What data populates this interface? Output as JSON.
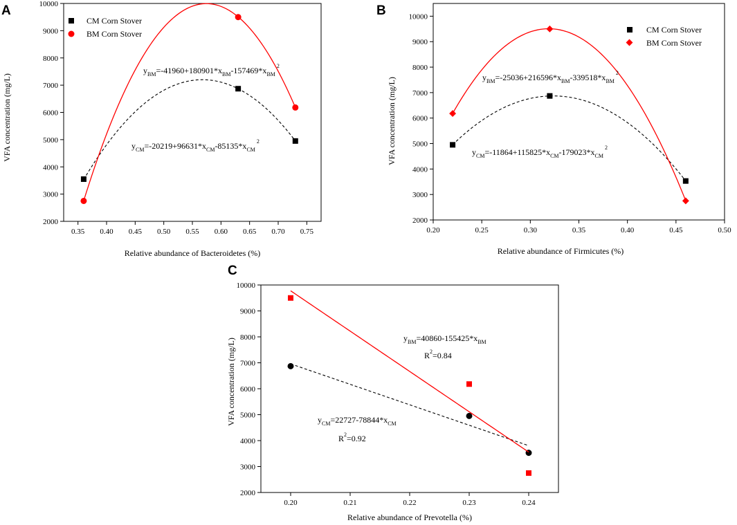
{
  "figure": {
    "panels": [
      "A",
      "B",
      "C"
    ],
    "colors": {
      "cm": "#000000",
      "bm": "#ff0000",
      "axis": "#000000",
      "background": "#ffffff"
    }
  },
  "chart_data": [
    {
      "id": "A",
      "type": "scatter",
      "title": "",
      "xlabel": "Relative abundance of Bacteroidetes (%)",
      "ylabel": "VFA concentration (mg/L)",
      "xlim": [
        0.325,
        0.775
      ],
      "ylim": [
        2000,
        10000
      ],
      "xticks": [
        0.35,
        0.4,
        0.45,
        0.5,
        0.55,
        0.6,
        0.65,
        0.7,
        0.75
      ],
      "xtick_labels": [
        "0.35",
        "0.40",
        "0.45",
        "0.50",
        "0.55",
        "0.60",
        "0.65",
        "0.70",
        "0.75"
      ],
      "yticks": [
        2000,
        3000,
        4000,
        5000,
        6000,
        7000,
        8000,
        9000,
        10000
      ],
      "legend_position": "top-left",
      "series": [
        {
          "name": "CM Corn Stover",
          "color": "#000000",
          "marker": "square",
          "x": [
            0.36,
            0.63,
            0.73
          ],
          "y": [
            3550,
            6870,
            4950
          ],
          "fit": {
            "style": "dashed",
            "color": "#000000",
            "coeffs": [
              -20219,
              96631,
              -85135
            ],
            "x_range": [
              0.36,
              0.73
            ]
          },
          "equation": {
            "y_sub": "CM",
            "x_sub": "CM",
            "text": "=-20219+96631*x",
            "text2": "-85135*x",
            "sup": "2"
          }
        },
        {
          "name": "BM Corn Stover",
          "color": "#ff0000",
          "marker": "circle",
          "x": [
            0.36,
            0.63,
            0.73
          ],
          "y": [
            2750,
            9500,
            6180
          ],
          "fit": {
            "style": "solid",
            "color": "#ff0000",
            "coeffs": [
              -41960,
              180901,
              -157469
            ],
            "x_range": [
              0.36,
              0.73
            ]
          },
          "equation": {
            "y_sub": "BM",
            "x_sub": "BM",
            "text": "=-41960+180901*x",
            "text2": "-157469*x",
            "sup": "2"
          }
        }
      ]
    },
    {
      "id": "B",
      "type": "scatter",
      "title": "",
      "xlabel": "Relative abundance of Firmicutes (%)",
      "ylabel": "VFA concentration (mg/L)",
      "xlim": [
        0.2,
        0.5
      ],
      "ylim": [
        2000,
        10500
      ],
      "xticks": [
        0.2,
        0.25,
        0.3,
        0.35,
        0.4,
        0.45,
        0.5
      ],
      "xtick_labels": [
        "0.20",
        "0.25",
        "0.30",
        "0.35",
        "0.40",
        "0.45",
        "0.50"
      ],
      "yticks": [
        2000,
        3000,
        4000,
        5000,
        6000,
        7000,
        8000,
        9000,
        10000
      ],
      "legend_position": "top-right",
      "series": [
        {
          "name": "CM Corn Stover",
          "color": "#000000",
          "marker": "square",
          "x": [
            0.22,
            0.32,
            0.46
          ],
          "y": [
            4950,
            6870,
            3530
          ],
          "fit": {
            "style": "dashed",
            "color": "#000000",
            "coeffs": [
              -11864,
              115825,
              -179023
            ],
            "x_range": [
              0.22,
              0.46
            ]
          },
          "equation": {
            "y_sub": "CM",
            "x_sub": "CM",
            "text": "=-11864+115825*x",
            "text2": "-179023*x",
            "sup": "2"
          }
        },
        {
          "name": "BM Corn Stover",
          "color": "#ff0000",
          "marker": "diamond",
          "x": [
            0.22,
            0.32,
            0.46
          ],
          "y": [
            6180,
            9500,
            2750
          ],
          "fit": {
            "style": "solid",
            "color": "#ff0000",
            "coeffs": [
              -25036,
              216596,
              -339518
            ],
            "x_range": [
              0.22,
              0.46
            ]
          },
          "equation": {
            "y_sub": "BM",
            "x_sub": "BM",
            "text": "=-25036+216596*x",
            "text2": "-339518*x",
            "sup": "2"
          }
        }
      ]
    },
    {
      "id": "C",
      "type": "scatter",
      "title": "",
      "xlabel": "Relative abundance of Prevotella (%)",
      "ylabel": "VFA concentration (mg/L)",
      "xlim": [
        0.195,
        0.245
      ],
      "ylim": [
        2000,
        10000
      ],
      "xticks": [
        0.2,
        0.21,
        0.22,
        0.23,
        0.24
      ],
      "xtick_labels": [
        "0.20",
        "0.21",
        "0.22",
        "0.23",
        "0.24"
      ],
      "yticks": [
        2000,
        3000,
        4000,
        5000,
        6000,
        7000,
        8000,
        9000,
        10000
      ],
      "series": [
        {
          "name": "CM Corn Stover",
          "color": "#000000",
          "marker": "circle",
          "x": [
            0.2,
            0.23,
            0.24
          ],
          "y": [
            6870,
            4950,
            3530
          ],
          "fit": {
            "style": "dashed",
            "color": "#000000",
            "coeffs": [
              22727,
              -78844
            ],
            "x_range": [
              0.2,
              0.24
            ]
          },
          "equation": {
            "y_sub": "CM",
            "x_sub": "CM",
            "text": "=22727-78844*x",
            "r2_prefix": "R",
            "r2_sup": "2",
            "r2_value": "=0.92"
          }
        },
        {
          "name": "BM Corn Stover",
          "color": "#ff0000",
          "marker": "square",
          "x": [
            0.2,
            0.23,
            0.24
          ],
          "y": [
            9500,
            6180,
            2750
          ],
          "fit": {
            "style": "solid",
            "color": "#ff0000",
            "coeffs": [
              40860,
              -155425
            ],
            "x_range": [
              0.2,
              0.24
            ]
          },
          "equation": {
            "y_sub": "BM",
            "x_sub": "BM",
            "text": "=40860-155425*x",
            "r2_prefix": "R",
            "r2_sup": "2",
            "r2_value": "=0.84"
          }
        }
      ]
    }
  ]
}
